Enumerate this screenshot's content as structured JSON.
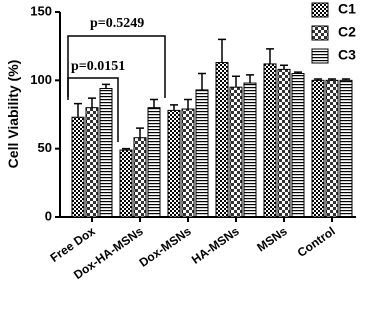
{
  "chart_data": {
    "type": "bar",
    "y_label": "Cell Viability (%)",
    "categories": [
      "Free Dox",
      "Dox-HA-MSNs",
      "Dox-MSNs",
      "HA-MSNs",
      "MSNs",
      "Control"
    ],
    "series": [
      {
        "name": "C1",
        "values": [
          73,
          49,
          78,
          113,
          112,
          100
        ],
        "errors": [
          10,
          1,
          4,
          17,
          11,
          1
        ]
      },
      {
        "name": "C2",
        "values": [
          80,
          58,
          79,
          95,
          108,
          100
        ],
        "errors": [
          7,
          7,
          7,
          8,
          3,
          1
        ]
      },
      {
        "name": "C3",
        "values": [
          94,
          80,
          93,
          98,
          105,
          100
        ],
        "errors": [
          3,
          6,
          12,
          6,
          1,
          1
        ]
      }
    ],
    "ylim": [
      0,
      150
    ],
    "yticks": [
      0,
      50,
      100,
      150
    ],
    "annotations": [
      "p=0.5249",
      "p=0.0151"
    ]
  }
}
